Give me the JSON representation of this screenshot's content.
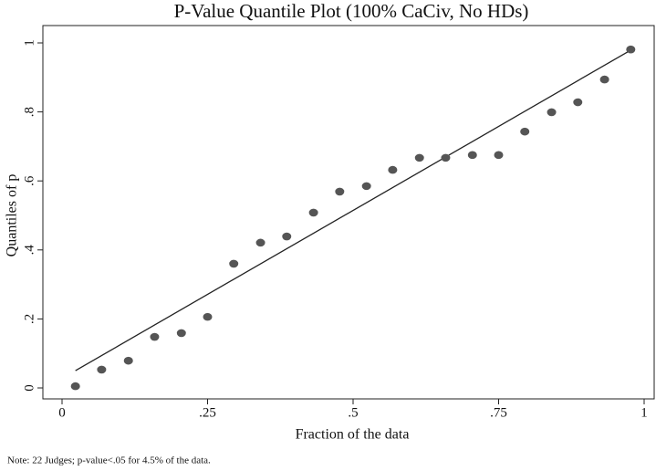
{
  "chart_data": {
    "type": "scatter",
    "title": "P-Value Quantile Plot (100% CaCiv, No HDs)",
    "x_label": "Fraction of the data",
    "y_label": "Quantiles of p",
    "note": "Note: 22 Judges; p-value<.05 for 4.5% of the data.",
    "x": [
      0.023,
      0.068,
      0.114,
      0.159,
      0.205,
      0.25,
      0.295,
      0.341,
      0.386,
      0.432,
      0.477,
      0.523,
      0.568,
      0.614,
      0.659,
      0.705,
      0.75,
      0.795,
      0.841,
      0.886,
      0.932,
      0.977
    ],
    "values": [
      0.005,
      0.053,
      0.079,
      0.148,
      0.159,
      0.206,
      0.36,
      0.421,
      0.439,
      0.508,
      0.569,
      0.585,
      0.632,
      0.667,
      0.667,
      0.675,
      0.675,
      0.743,
      0.799,
      0.828,
      0.894,
      0.981
    ],
    "color": "#555555",
    "reference_line": {
      "x": [
        0.023,
        0.977
      ],
      "y": [
        0.05,
        0.979
      ],
      "color": "#222222"
    },
    "xlim": [
      0,
      1
    ],
    "ylim": [
      0,
      1
    ],
    "xticks": [
      0,
      {
        "value": 0.25,
        "label": ".25"
      },
      {
        "value": 0.5,
        "label": ".5"
      },
      {
        "value": 0.75,
        "label": ".75"
      },
      1
    ],
    "yticks": [
      0,
      {
        "value": 0.2,
        "label": ".2"
      },
      {
        "value": 0.4,
        "label": ".4"
      },
      {
        "value": 0.6,
        "label": ".6"
      },
      {
        "value": 0.8,
        "label": ".8"
      },
      1
    ]
  }
}
